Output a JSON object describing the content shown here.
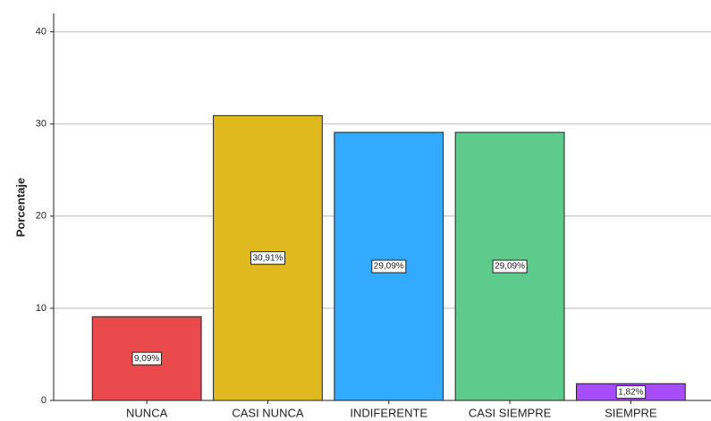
{
  "chart_data": {
    "type": "bar",
    "y_label": "Porcentaje",
    "categories": [
      "NUNCA",
      "CASI NUNCA",
      "INDIFERENTE",
      "CASI SIEMPRE",
      "SIEMPRE"
    ],
    "values": [
      9.09,
      30.91,
      29.09,
      29.09,
      1.82
    ],
    "value_labels": [
      "9,09%",
      "30,91%",
      "29,09%",
      "29,09%",
      "1,82%"
    ],
    "colors": [
      "#ea4a4c",
      "#e0b91e",
      "#32aafe",
      "#5dcb8c",
      "#a84dfa"
    ],
    "ylim": [
      0,
      42
    ],
    "yticks": [
      0,
      10,
      20,
      30,
      40
    ],
    "grid": true
  }
}
